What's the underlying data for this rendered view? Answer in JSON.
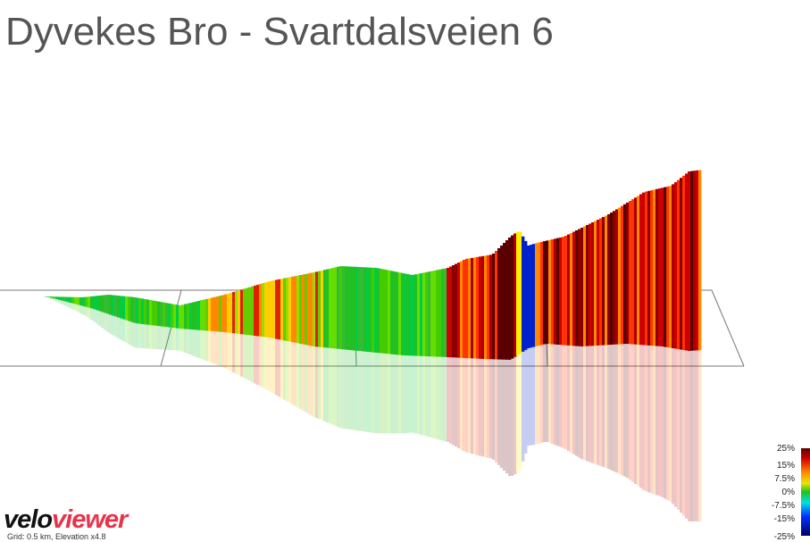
{
  "header": {
    "title": "Dyvekes Bro - Svartdalsveien 6"
  },
  "legend": {
    "labels": [
      "25%",
      "15%",
      "7.5%",
      "0%",
      "-7.5%",
      "-15%",
      "-25%"
    ]
  },
  "logo": {
    "velo": "velo",
    "viewer": "viewer"
  },
  "footer": {
    "note": "Grid: 0.5 km, Elevation x4.8"
  }
}
